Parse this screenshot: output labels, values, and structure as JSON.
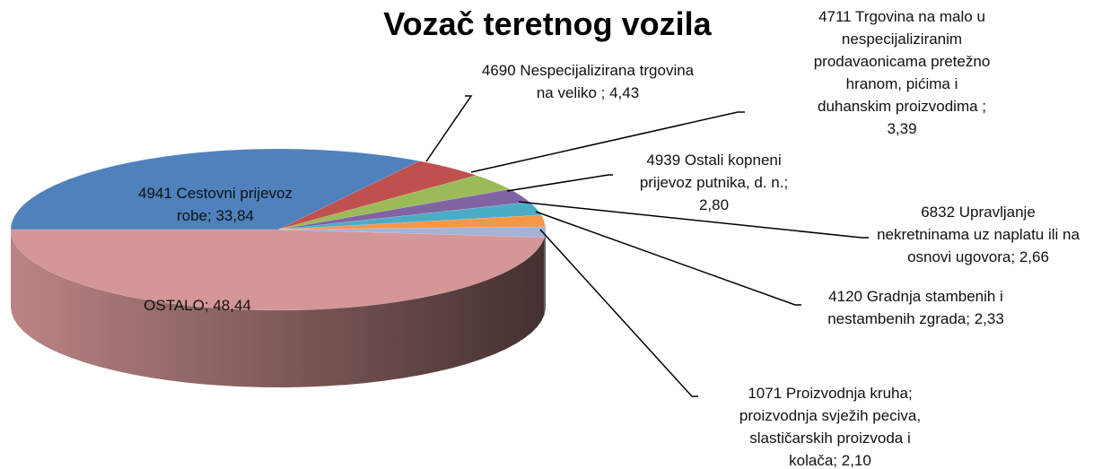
{
  "chart_data": {
    "type": "pie3d",
    "title": "Vozač teretnog vozila",
    "categories": [
      "4941 Cestovni prijevoz robe;",
      "4690 Nespecijalizirana trgovina na veliko ;",
      "4711 Trgovina na malo u nespecijaliziranim prodavaonicama pretežno hranom, pićima i duhanskim proizvodima ;",
      "4939 Ostali kopneni prijevoz putnika, d. n.;",
      "6832 Upravljanje nekretninama uz naplatu ili na osnovi ugovora;",
      "4120 Gradnja stambenih i nestambenih zgrada;",
      "1071 Proizvodnja kruha; proizvodnja svježih peciva, slastičarskih proizvoda i kolača;",
      "OSTALO;"
    ],
    "values": [
      33.84,
      4.43,
      3.39,
      2.8,
      2.66,
      2.33,
      2.1,
      48.44
    ],
    "value_labels": [
      "33,84",
      "4,43",
      "3,39",
      "2,80",
      "2,66",
      "2,33",
      "2,10",
      "48,44"
    ],
    "colors": [
      "#4f81bd",
      "#c0504d",
      "#9bbb59",
      "#8064a2",
      "#4bacc6",
      "#f79646",
      "#a1b3da",
      "#d49696"
    ]
  }
}
